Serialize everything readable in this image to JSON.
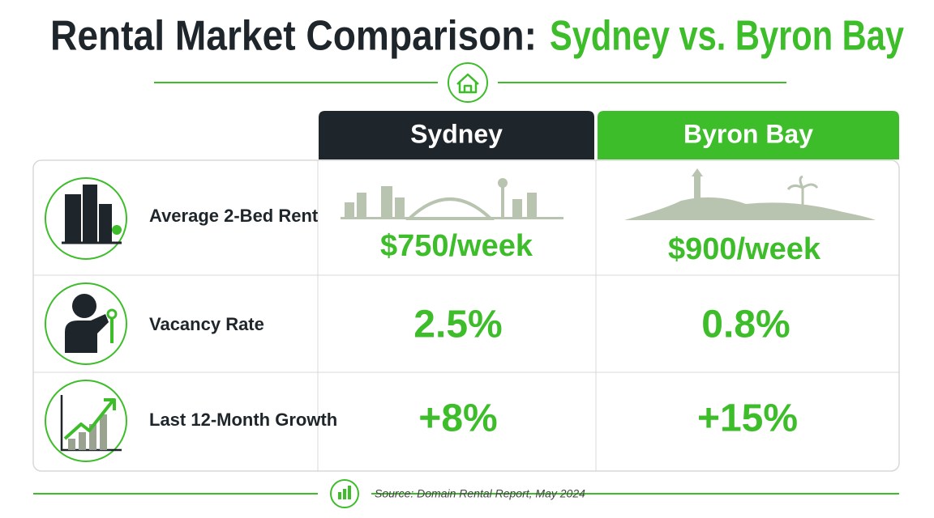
{
  "header": {
    "title": "Rental Market Comparison:",
    "title_highlight": "Sydney vs. Byron Bay"
  },
  "table": {
    "columns": [
      "Sydney",
      "Byron Bay"
    ],
    "rows": [
      {
        "label": "Average 2-Bed Rent",
        "values": [
          "$750/week",
          "$900/week"
        ]
      },
      {
        "label": "Vacancy Rate",
        "values": [
          "2.5%",
          "0.8%"
        ]
      },
      {
        "label": "Last 12-Month Growth",
        "values": [
          "+8%",
          "+15%"
        ]
      }
    ]
  },
  "footer": {
    "source": "Source: Domain Rental Report, May 2024"
  }
}
